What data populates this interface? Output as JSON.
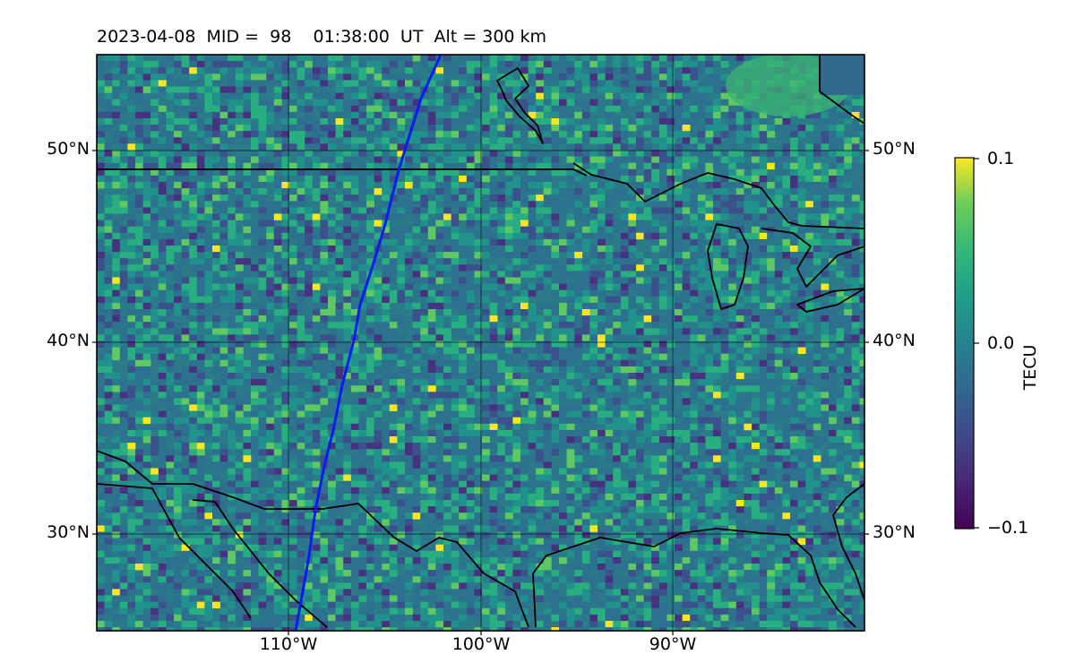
{
  "title": "2023-04-08  MID =  98    01:38:00  UT  Alt = 300 km",
  "map": {
    "lon_range": [
      -120,
      -80
    ],
    "lat_range": [
      25,
      55
    ],
    "grid": true,
    "lat_labels": [
      "50°N",
      "40°N",
      "30°N"
    ],
    "lon_labels": [
      "110°W",
      "100°W",
      "90°W"
    ],
    "overlay_line_color": "#0a1cf0",
    "coastline_color": "#000000"
  },
  "colorbar": {
    "title": "TECU",
    "ticks": [
      "0.1",
      "0.0",
      "−0.1"
    ],
    "range": [
      -0.1,
      0.1
    ],
    "colormap": "viridis"
  }
}
